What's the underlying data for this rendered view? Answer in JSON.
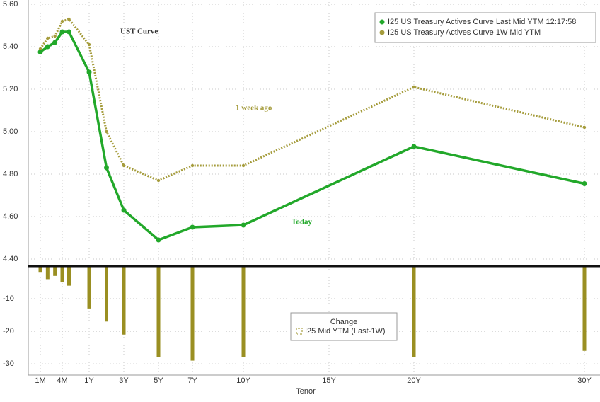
{
  "chart_data": [
    {
      "type": "line",
      "title": "UST Curve",
      "annotations": [
        "1 week ago",
        "Today"
      ],
      "x": [
        0.0833,
        0.1667,
        0.25,
        0.3333,
        0.5,
        1,
        2,
        3,
        5,
        7,
        10,
        20,
        30
      ],
      "xlim": [
        0,
        31.5
      ],
      "xticks": [
        {
          "value": 0.0833,
          "label": "1M"
        },
        {
          "value": 0.3333,
          "label": "4M"
        },
        {
          "value": 1,
          "label": "1Y"
        },
        {
          "value": 3,
          "label": "3Y"
        },
        {
          "value": 5,
          "label": "5Y"
        },
        {
          "value": 7,
          "label": "7Y"
        },
        {
          "value": 10,
          "label": "10Y"
        },
        {
          "value": 15,
          "label": "15Y"
        },
        {
          "value": 20,
          "label": "20Y"
        },
        {
          "value": 30,
          "label": "30Y"
        }
      ],
      "ylim": [
        4.37,
        5.61
      ],
      "yticks": [
        {
          "value": 4.4,
          "label": "4.40"
        },
        {
          "value": 4.6,
          "label": "4.60"
        },
        {
          "value": 4.8,
          "label": "4.80"
        },
        {
          "value": 5,
          "label": "5.00"
        },
        {
          "value": 5.2,
          "label": "5.20"
        },
        {
          "value": 5.4,
          "label": "5.40"
        },
        {
          "value": 5.6,
          "label": "5.60"
        }
      ],
      "grid": true,
      "series": [
        {
          "name": "I25 US Treasury Actives Curve Last Mid YTM 12:17:58",
          "color": "#22a82a",
          "line_style": "solid",
          "values": [
            5.375,
            5.4,
            5.42,
            5.47,
            5.47,
            5.28,
            4.83,
            4.63,
            4.49,
            4.55,
            4.56,
            4.93,
            4.755
          ]
        },
        {
          "name": "I25 US Treasury Actives Curve 1W Mid YTM",
          "color": "#a59c3c",
          "line_style": "dotted",
          "values": [
            5.39,
            5.44,
            5.45,
            5.52,
            5.53,
            5.41,
            5.0,
            4.84,
            4.77,
            4.84,
            4.84,
            5.21,
            5.02
          ]
        }
      ]
    },
    {
      "type": "bar",
      "legend_title": "Change",
      "xlabel": "Tenor",
      "x": [
        0.0833,
        0.1667,
        0.25,
        0.3333,
        0.5,
        1,
        2,
        3,
        5,
        7,
        10,
        20,
        30
      ],
      "xlim": [
        0,
        31.5
      ],
      "xticks": [
        {
          "value": 0.0833,
          "label": "1M"
        },
        {
          "value": 0.3333,
          "label": "4M"
        },
        {
          "value": 1,
          "label": "1Y"
        },
        {
          "value": 3,
          "label": "3Y"
        },
        {
          "value": 5,
          "label": "5Y"
        },
        {
          "value": 7,
          "label": "7Y"
        },
        {
          "value": 10,
          "label": "10Y"
        },
        {
          "value": 15,
          "label": "15Y"
        },
        {
          "value": 20,
          "label": "20Y"
        },
        {
          "value": 30,
          "label": "30Y"
        }
      ],
      "ylim": [
        -33,
        0
      ],
      "yticks": [
        -10,
        -20,
        -30
      ],
      "grid": true,
      "series": [
        {
          "name": "I25 Mid YTM (Last-1W)",
          "color": "#9a8f22",
          "values": [
            -2,
            -4,
            -3,
            -5,
            -6,
            -13,
            -17,
            -21,
            -28,
            -29,
            -28,
            -28,
            -26
          ]
        }
      ]
    }
  ]
}
